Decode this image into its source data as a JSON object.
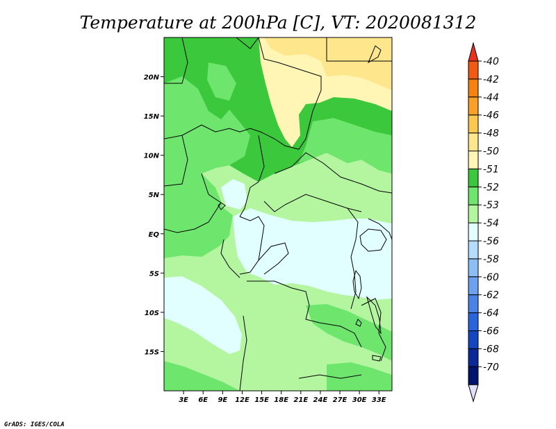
{
  "title": "Temperature at 200hPa [C], VT: 2020081312",
  "credit": "GrADS: IGES/COLA",
  "map": {
    "lat_range": [
      -20,
      25
    ],
    "lon_range": [
      0,
      35
    ],
    "lat_ticks": [
      {
        "lat": 20,
        "label": "20N"
      },
      {
        "lat": 15,
        "label": "15N"
      },
      {
        "lat": 10,
        "label": "10N"
      },
      {
        "lat": 5,
        "label": "5N"
      },
      {
        "lat": 0,
        "label": "EQ"
      },
      {
        "lat": -5,
        "label": "5S"
      },
      {
        "lat": -10,
        "label": "10S"
      },
      {
        "lat": -15,
        "label": "15S"
      }
    ],
    "lon_ticks": [
      {
        "lon": 3,
        "label": "3E"
      },
      {
        "lon": 6,
        "label": "6E"
      },
      {
        "lon": 9,
        "label": "9E"
      },
      {
        "lon": 12,
        "label": "12E"
      },
      {
        "lon": 15,
        "label": "15E"
      },
      {
        "lon": 18,
        "label": "18E"
      },
      {
        "lon": 21,
        "label": "21E"
      },
      {
        "lon": 24,
        "label": "24E"
      },
      {
        "lon": 27,
        "label": "27E"
      },
      {
        "lon": 30,
        "label": "30E"
      },
      {
        "lon": 33,
        "label": "33E"
      }
    ]
  },
  "colorbar": {
    "levels": [
      "-40",
      "-42",
      "-44",
      "-46",
      "-48",
      "-50",
      "-51",
      "-52",
      "-53",
      "-54",
      "-56",
      "-58",
      "-60",
      "-62",
      "-64",
      "-66",
      "-68",
      "-70"
    ],
    "colors": [
      "#e6321e",
      "#f05a14",
      "#f5820f",
      "#f8a028",
      "#fac850",
      "#fde68c",
      "#fff5b4",
      "#3cc83c",
      "#6ee66e",
      "#b4f5a0",
      "#e1ffff",
      "#b4dcff",
      "#8cbef5",
      "#6ea0f0",
      "#4b82e6",
      "#2864dc",
      "#1446be",
      "#0a2896",
      "#00146e",
      "#e1e1ff"
    ]
  }
}
